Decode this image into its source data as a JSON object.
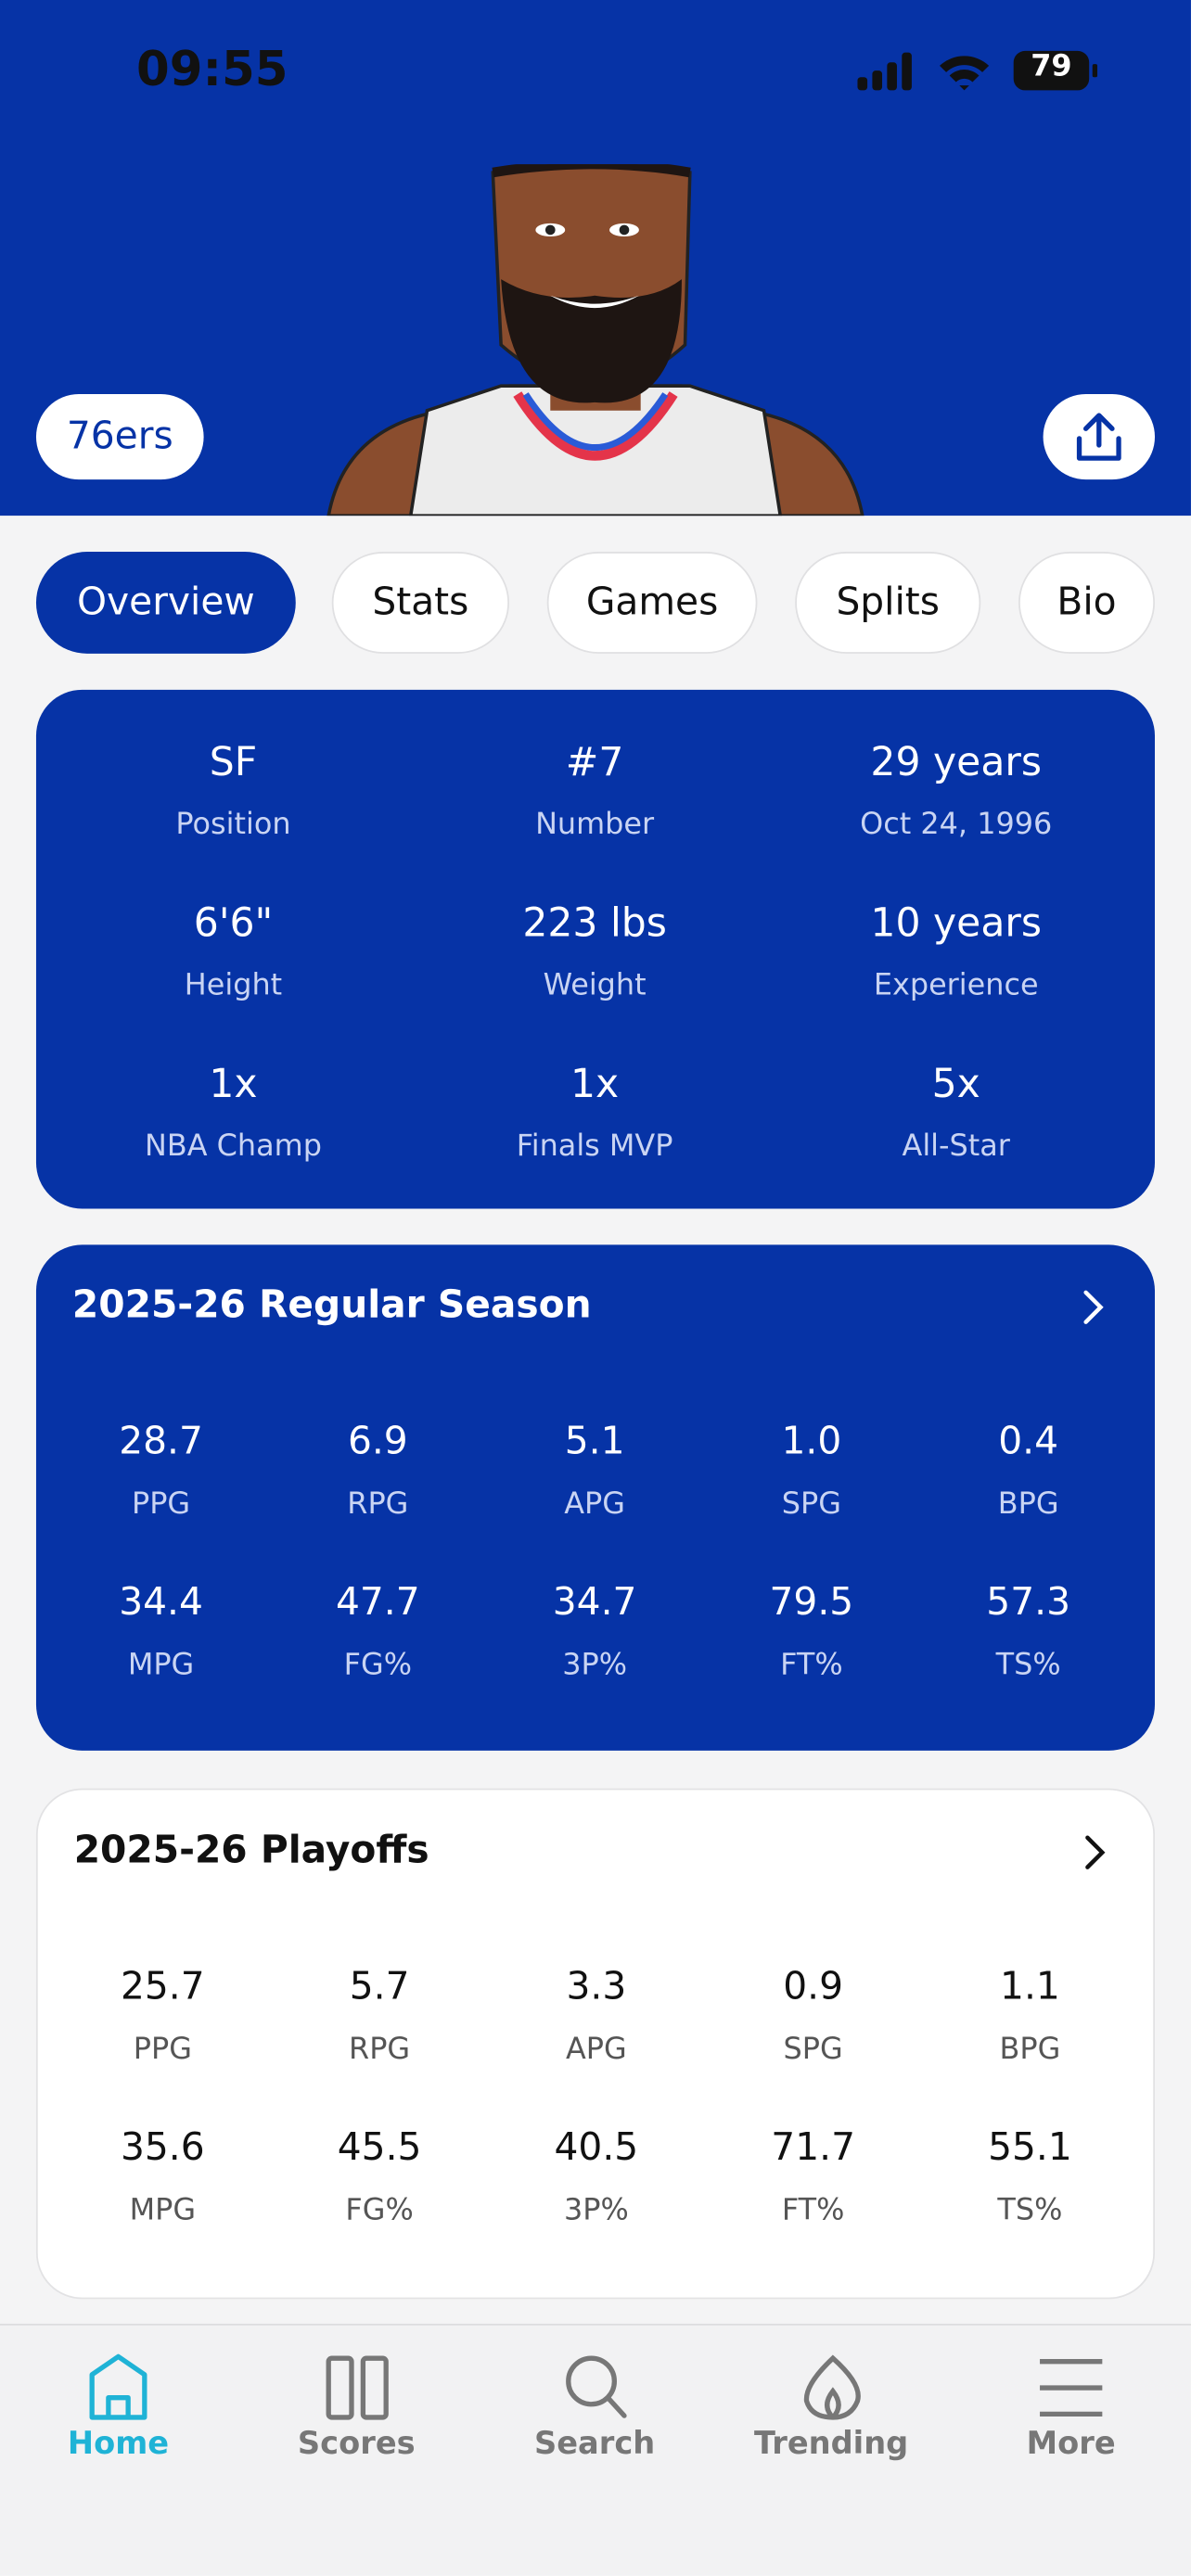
{
  "status_bar": {
    "time": "09:55",
    "battery": "79"
  },
  "header": {
    "team": "76ers"
  },
  "tabs": [
    "Overview",
    "Stats",
    "Games",
    "Splits",
    "Bio"
  ],
  "info": [
    {
      "value": "SF",
      "label": "Position"
    },
    {
      "value": "#7",
      "label": "Number"
    },
    {
      "value": "29 years",
      "label": "Oct 24, 1996"
    },
    {
      "value": "6'6\"",
      "label": "Height"
    },
    {
      "value": "223 lbs",
      "label": "Weight"
    },
    {
      "value": "10 years",
      "label": "Experience"
    },
    {
      "value": "1x",
      "label": "NBA Champ"
    },
    {
      "value": "1x",
      "label": "Finals MVP"
    },
    {
      "value": "5x",
      "label": "All-Star"
    }
  ],
  "seasons": [
    {
      "title": "2025-26 Regular Season",
      "stats": [
        {
          "value": "28.7",
          "label": "PPG"
        },
        {
          "value": "6.9",
          "label": "RPG"
        },
        {
          "value": "5.1",
          "label": "APG"
        },
        {
          "value": "1.0",
          "label": "SPG"
        },
        {
          "value": "0.4",
          "label": "BPG"
        },
        {
          "value": "34.4",
          "label": "MPG"
        },
        {
          "value": "47.7",
          "label": "FG%"
        },
        {
          "value": "34.7",
          "label": "3P%"
        },
        {
          "value": "79.5",
          "label": "FT%"
        },
        {
          "value": "57.3",
          "label": "TS%"
        }
      ]
    },
    {
      "title": "2025-26 Playoffs",
      "stats": [
        {
          "value": "25.7",
          "label": "PPG"
        },
        {
          "value": "5.7",
          "label": "RPG"
        },
        {
          "value": "3.3",
          "label": "APG"
        },
        {
          "value": "0.9",
          "label": "SPG"
        },
        {
          "value": "1.1",
          "label": "BPG"
        },
        {
          "value": "35.6",
          "label": "MPG"
        },
        {
          "value": "45.5",
          "label": "FG%"
        },
        {
          "value": "40.5",
          "label": "3P%"
        },
        {
          "value": "71.7",
          "label": "FT%"
        },
        {
          "value": "55.1",
          "label": "TS%"
        }
      ]
    }
  ],
  "nav": [
    "Home",
    "Scores",
    "Search",
    "Trending",
    "More"
  ]
}
